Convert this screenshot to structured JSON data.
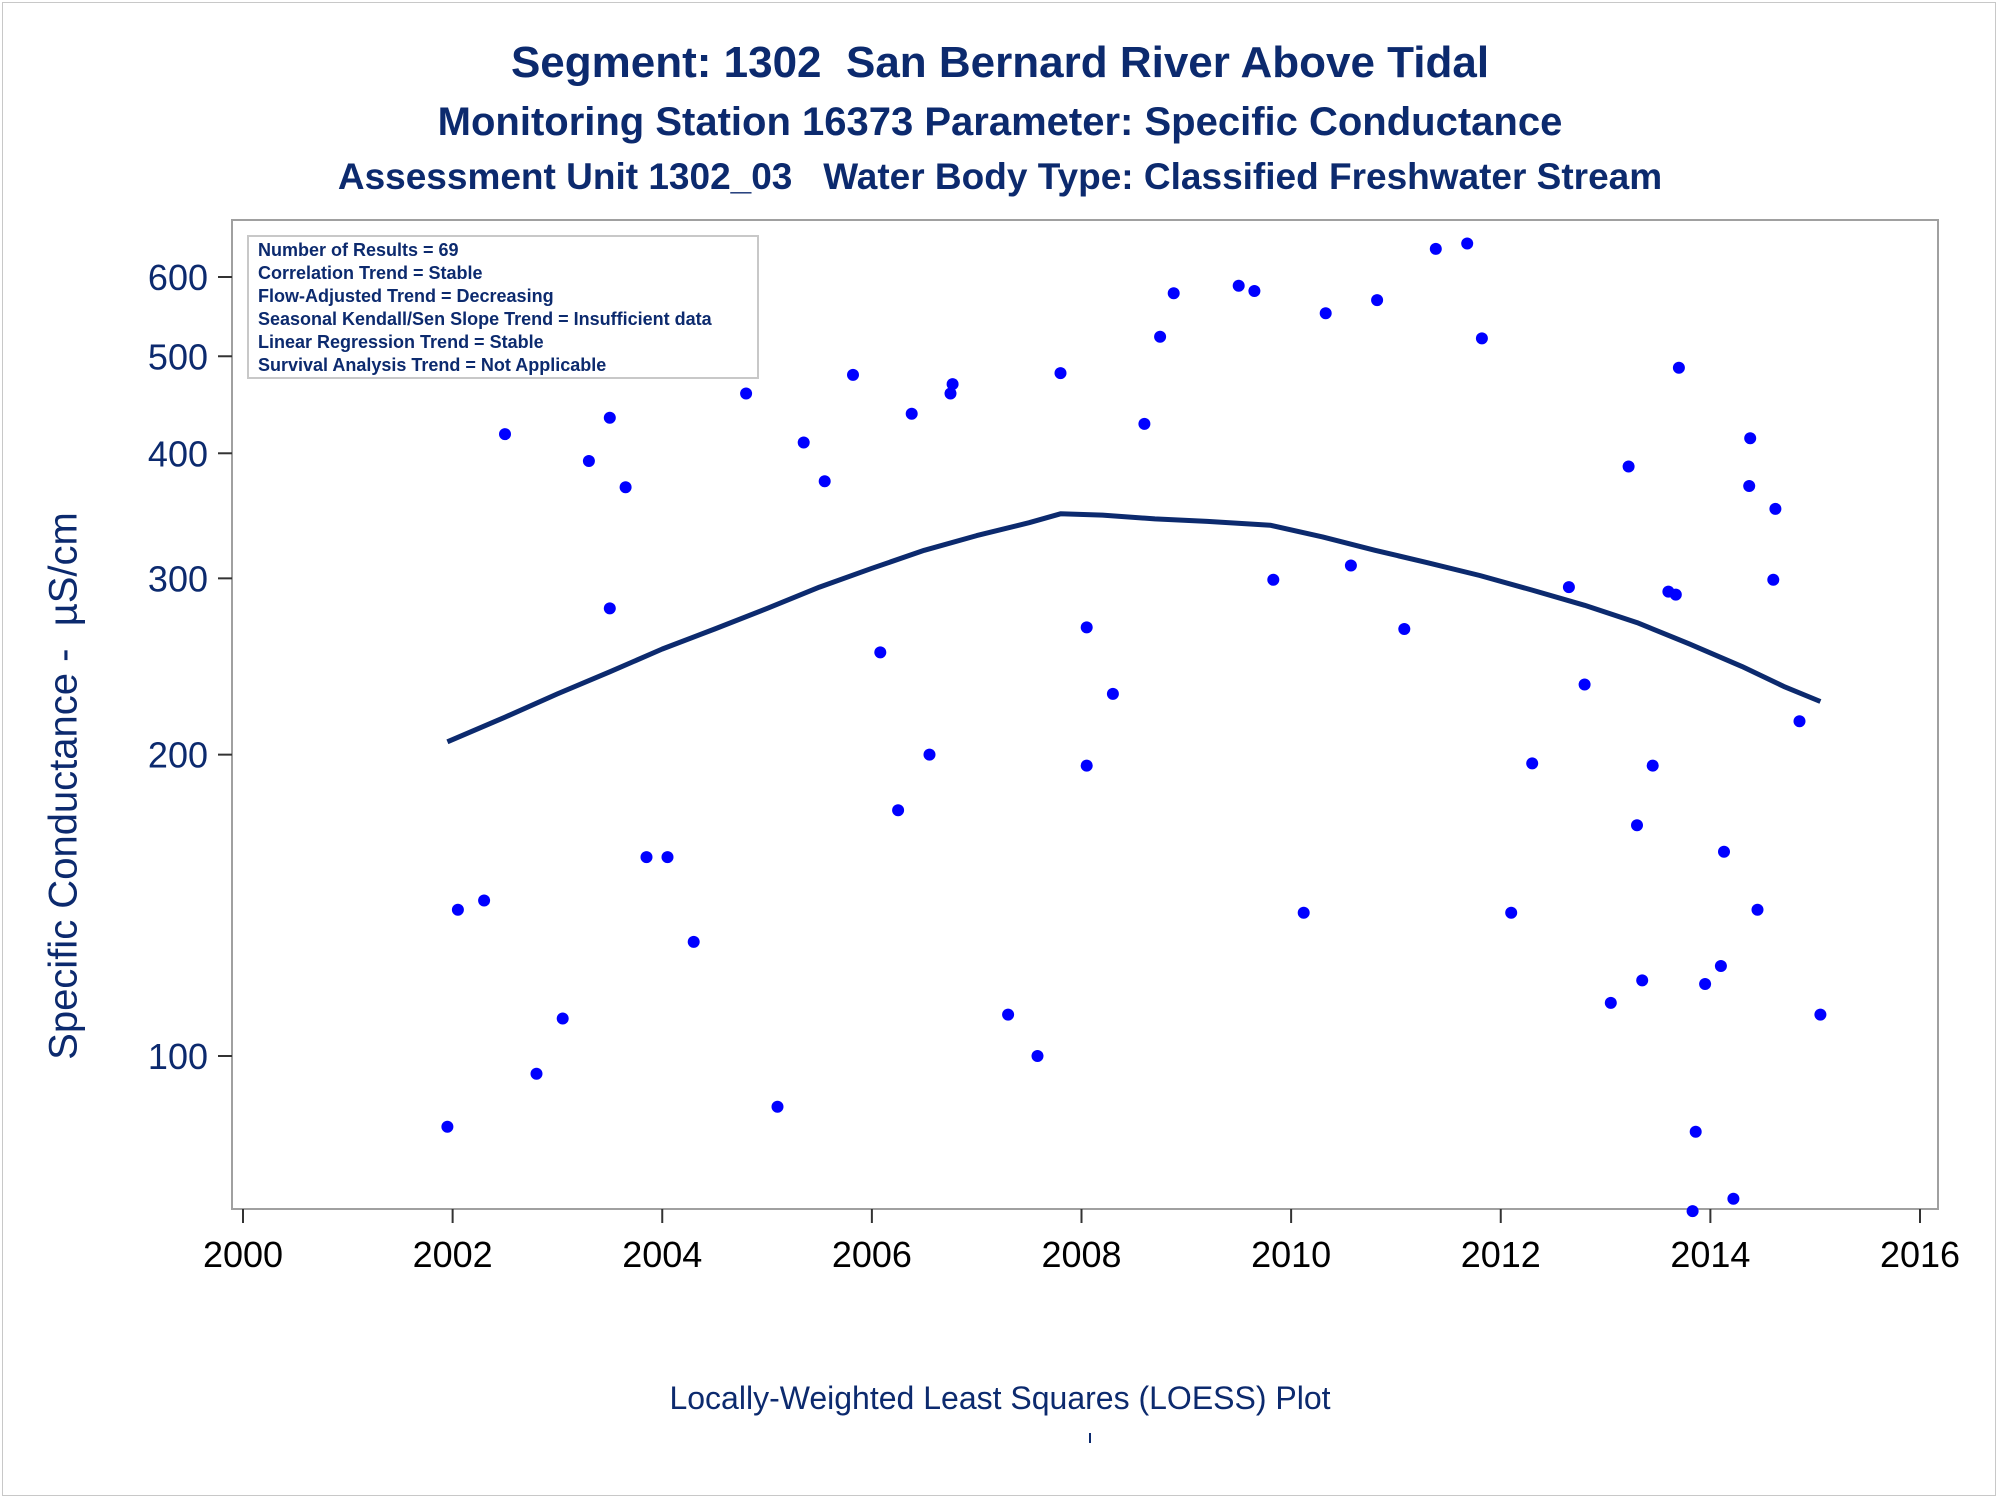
{
  "titles": {
    "line1": "Segment: 1302  San Bernard River Above Tidal",
    "line2": "Monitoring Station 16373 Parameter: Specific Conductance",
    "line3": "Assessment Unit 1302_03   Water Body Type: Classified Freshwater Stream"
  },
  "stats_box": {
    "lines": [
      "Number of Results = 69",
      "Correlation Trend = Stable",
      "Flow-Adjusted Trend = Decreasing",
      "Seasonal Kendall/Sen Slope Trend = Insufficient data",
      "Linear Regression Trend = Stable",
      "Survival Analysis Trend = Not Applicable"
    ]
  },
  "footer": "Locally-Weighted Least Squares (LOESS) Plot",
  "colors": {
    "text": "#0c2a6e",
    "points": "#0000ff",
    "line": "#0c2a6e",
    "axis": "#a0a0a0"
  },
  "chart_data": {
    "type": "scatter",
    "ylabel": "Specific Conductance -  µS/cm",
    "xlabel": "",
    "y_scale": "log",
    "xlim": [
      2000,
      2016
    ],
    "ylim": [
      68,
      660
    ],
    "x_ticks": [
      2000,
      2002,
      2004,
      2006,
      2008,
      2010,
      2012,
      2014,
      2016
    ],
    "y_ticks": [
      100,
      200,
      300,
      400,
      500,
      600
    ],
    "series": [
      {
        "kind": "points",
        "points": [
          [
            2001.95,
            85
          ],
          [
            2002.05,
            140
          ],
          [
            2002.3,
            143
          ],
          [
            2002.5,
            418
          ],
          [
            2002.8,
            96
          ],
          [
            2003.05,
            109
          ],
          [
            2003.3,
            393
          ],
          [
            2003.5,
            280
          ],
          [
            2003.5,
            434
          ],
          [
            2003.65,
            370
          ],
          [
            2003.85,
            158
          ],
          [
            2004.05,
            158
          ],
          [
            2004.3,
            130
          ],
          [
            2004.8,
            459
          ],
          [
            2005.1,
            89
          ],
          [
            2005.35,
            410
          ],
          [
            2005.55,
            375
          ],
          [
            2005.82,
            479
          ],
          [
            2006.08,
            253
          ],
          [
            2006.25,
            176
          ],
          [
            2006.38,
            438
          ],
          [
            2006.55,
            200
          ],
          [
            2006.75,
            459
          ],
          [
            2006.77,
            469
          ],
          [
            2007.3,
            110
          ],
          [
            2007.58,
            100
          ],
          [
            2007.8,
            481
          ],
          [
            2008.05,
            268
          ],
          [
            2008.05,
            195
          ],
          [
            2008.3,
            230
          ],
          [
            2008.6,
            428
          ],
          [
            2008.75,
            523
          ],
          [
            2008.88,
            578
          ],
          [
            2009.5,
            588
          ],
          [
            2009.65,
            581
          ],
          [
            2009.83,
            299
          ],
          [
            2010.12,
            139
          ],
          [
            2010.33,
            552
          ],
          [
            2010.57,
            309
          ],
          [
            2010.82,
            569
          ],
          [
            2011.08,
            267
          ],
          [
            2011.38,
            640
          ],
          [
            2011.68,
            648
          ],
          [
            2011.82,
            521
          ],
          [
            2012.1,
            139
          ],
          [
            2012.3,
            196
          ],
          [
            2012.65,
            294
          ],
          [
            2012.8,
            235
          ],
          [
            2013.05,
            113
          ],
          [
            2013.22,
            388
          ],
          [
            2013.3,
            170
          ],
          [
            2013.35,
            119
          ],
          [
            2013.45,
            195
          ],
          [
            2013.6,
            291
          ],
          [
            2013.67,
            289
          ],
          [
            2013.7,
            487
          ],
          [
            2013.83,
            70
          ],
          [
            2013.86,
            84
          ],
          [
            2013.95,
            118
          ],
          [
            2014.1,
            123
          ],
          [
            2014.13,
            160
          ],
          [
            2014.22,
            72
          ],
          [
            2014.37,
            371
          ],
          [
            2014.38,
            414
          ],
          [
            2014.45,
            140
          ],
          [
            2014.6,
            299
          ],
          [
            2014.62,
            352
          ],
          [
            2014.85,
            216
          ],
          [
            2015.05,
            110
          ]
        ]
      },
      {
        "kind": "loess",
        "points": [
          [
            2001.95,
            206
          ],
          [
            2002.5,
            218
          ],
          [
            2003.0,
            230
          ],
          [
            2003.5,
            242
          ],
          [
            2004.0,
            255
          ],
          [
            2004.5,
            267
          ],
          [
            2005.0,
            280
          ],
          [
            2005.5,
            294
          ],
          [
            2006.0,
            307
          ],
          [
            2006.5,
            320
          ],
          [
            2007.0,
            331
          ],
          [
            2007.5,
            341
          ],
          [
            2007.8,
            348
          ],
          [
            2008.2,
            347
          ],
          [
            2008.7,
            344
          ],
          [
            2009.2,
            342
          ],
          [
            2009.8,
            339
          ],
          [
            2010.3,
            330
          ],
          [
            2010.8,
            320
          ],
          [
            2011.3,
            311
          ],
          [
            2011.8,
            302
          ],
          [
            2012.3,
            292
          ],
          [
            2012.8,
            282
          ],
          [
            2013.3,
            271
          ],
          [
            2013.8,
            258
          ],
          [
            2014.3,
            245
          ],
          [
            2014.7,
            234
          ],
          [
            2015.05,
            226
          ]
        ]
      }
    ]
  }
}
